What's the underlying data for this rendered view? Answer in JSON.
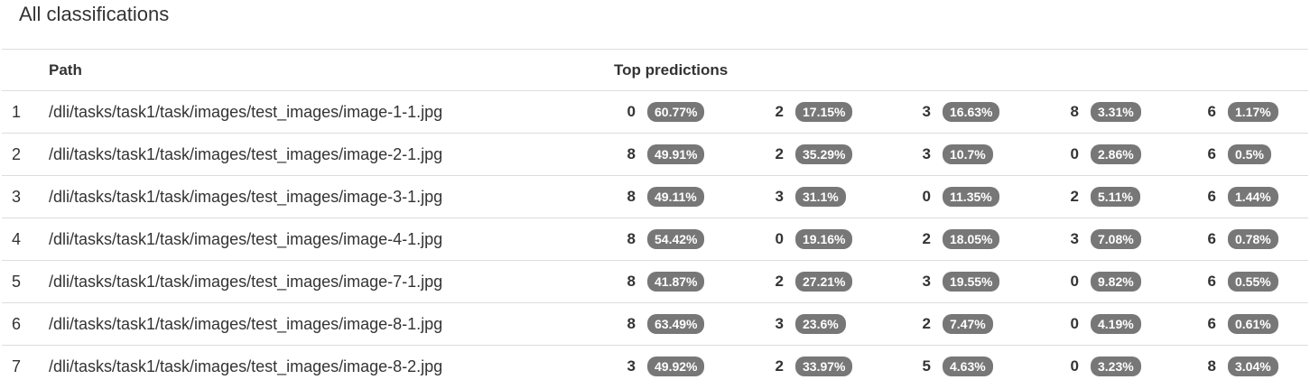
{
  "title": "All classifications",
  "headers": {
    "index": "",
    "path": "Path",
    "predictions": "Top predictions"
  },
  "rows": [
    {
      "index": "1",
      "path": "/dli/tasks/task1/task/images/test_images/image-1-1.jpg",
      "predictions": [
        {
          "class": "0",
          "prob": "60.77%"
        },
        {
          "class": "2",
          "prob": "17.15%"
        },
        {
          "class": "3",
          "prob": "16.63%"
        },
        {
          "class": "8",
          "prob": "3.31%"
        },
        {
          "class": "6",
          "prob": "1.17%"
        }
      ]
    },
    {
      "index": "2",
      "path": "/dli/tasks/task1/task/images/test_images/image-2-1.jpg",
      "predictions": [
        {
          "class": "8",
          "prob": "49.91%"
        },
        {
          "class": "2",
          "prob": "35.29%"
        },
        {
          "class": "3",
          "prob": "10.7%"
        },
        {
          "class": "0",
          "prob": "2.86%"
        },
        {
          "class": "6",
          "prob": "0.5%"
        }
      ]
    },
    {
      "index": "3",
      "path": "/dli/tasks/task1/task/images/test_images/image-3-1.jpg",
      "predictions": [
        {
          "class": "8",
          "prob": "49.11%"
        },
        {
          "class": "3",
          "prob": "31.1%"
        },
        {
          "class": "0",
          "prob": "11.35%"
        },
        {
          "class": "2",
          "prob": "5.11%"
        },
        {
          "class": "6",
          "prob": "1.44%"
        }
      ]
    },
    {
      "index": "4",
      "path": "/dli/tasks/task1/task/images/test_images/image-4-1.jpg",
      "predictions": [
        {
          "class": "8",
          "prob": "54.42%"
        },
        {
          "class": "0",
          "prob": "19.16%"
        },
        {
          "class": "2",
          "prob": "18.05%"
        },
        {
          "class": "3",
          "prob": "7.08%"
        },
        {
          "class": "6",
          "prob": "0.78%"
        }
      ]
    },
    {
      "index": "5",
      "path": "/dli/tasks/task1/task/images/test_images/image-7-1.jpg",
      "predictions": [
        {
          "class": "8",
          "prob": "41.87%"
        },
        {
          "class": "2",
          "prob": "27.21%"
        },
        {
          "class": "3",
          "prob": "19.55%"
        },
        {
          "class": "0",
          "prob": "9.82%"
        },
        {
          "class": "6",
          "prob": "0.55%"
        }
      ]
    },
    {
      "index": "6",
      "path": "/dli/tasks/task1/task/images/test_images/image-8-1.jpg",
      "predictions": [
        {
          "class": "8",
          "prob": "63.49%"
        },
        {
          "class": "3",
          "prob": "23.6%"
        },
        {
          "class": "2",
          "prob": "7.47%"
        },
        {
          "class": "0",
          "prob": "4.19%"
        },
        {
          "class": "6",
          "prob": "0.61%"
        }
      ]
    },
    {
      "index": "7",
      "path": "/dli/tasks/task1/task/images/test_images/image-8-2.jpg",
      "predictions": [
        {
          "class": "3",
          "prob": "49.92%"
        },
        {
          "class": "2",
          "prob": "33.97%"
        },
        {
          "class": "5",
          "prob": "4.63%"
        },
        {
          "class": "0",
          "prob": "3.23%"
        },
        {
          "class": "8",
          "prob": "3.04%"
        }
      ]
    }
  ],
  "colors": {
    "badge_bg": "#777777",
    "badge_text": "#ffffff",
    "border": "#dddddd",
    "text": "#333333"
  }
}
